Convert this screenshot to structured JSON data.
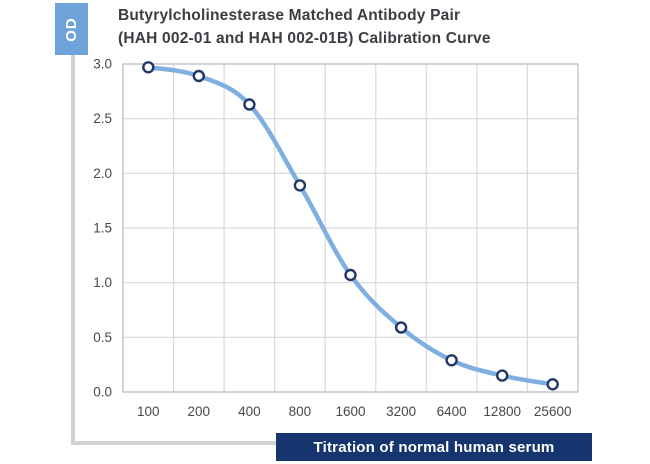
{
  "chart_data": {
    "type": "line",
    "title": "Butyrylcholinesterase Matched Antibody Pair\n(HAH 002-01 and HAH 002-01B) Calibration Curve",
    "ylabel": "OD",
    "xlabel": "Titration of normal human serum",
    "categories": [
      "100",
      "200",
      "400",
      "800",
      "1600",
      "3200",
      "6400",
      "12800",
      "25600"
    ],
    "values": [
      2.97,
      2.89,
      2.63,
      1.89,
      1.07,
      0.59,
      0.29,
      0.15,
      0.07
    ],
    "ylim": [
      0,
      3
    ],
    "yticks": [
      0.0,
      0.5,
      1.0,
      1.5,
      2.0,
      2.5,
      3.0
    ],
    "ytick_labels": [
      "0.0",
      "0.5",
      "1.0",
      "1.5",
      "2.0",
      "2.5",
      "3.0"
    ],
    "grid": true,
    "legend": "none",
    "marker": "open-circle",
    "line_style": "smooth",
    "colors": {
      "line": "#7fafe0",
      "marker_stroke": "#1f3864",
      "marker_fill": "#ffffff",
      "grid": "#d9d9d9",
      "plot_border": "#c3c6c9",
      "tick_text": "#45484d",
      "title_text": "#3a3d42",
      "ylabel_box": "#6ea2d8",
      "xlabel_box": "#16356e",
      "axis_frame": "#d0d3d6",
      "label_text": "#ffffff"
    }
  }
}
